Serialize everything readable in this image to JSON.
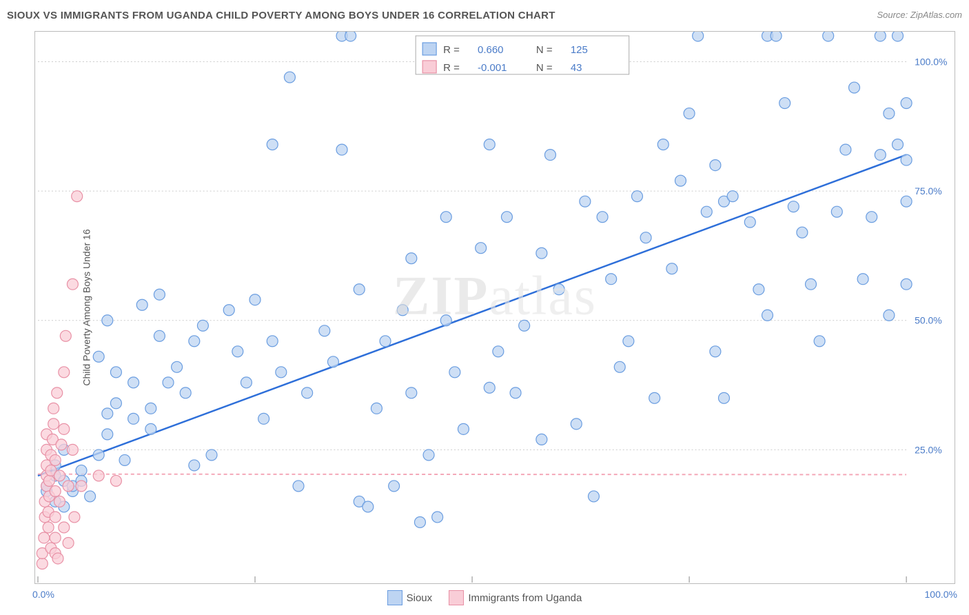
{
  "header": {
    "title": "SIOUX VS IMMIGRANTS FROM UGANDA CHILD POVERTY AMONG BOYS UNDER 16 CORRELATION CHART",
    "source": "Source: ZipAtlas.com"
  },
  "ylabel": "Child Poverty Among Boys Under 16",
  "watermark": {
    "bold": "ZIP",
    "light": "atlas"
  },
  "chart": {
    "type": "scatter",
    "xlim": [
      0,
      100
    ],
    "ylim": [
      0,
      105
    ],
    "x_tick_step": 25,
    "y_ticks": [
      0,
      25,
      50,
      75,
      100
    ],
    "x_tick_labels": [
      "0.0%",
      "",
      "",
      "",
      "100.0%"
    ],
    "y_tick_labels": [
      "",
      "25.0%",
      "50.0%",
      "75.0%",
      "100.0%"
    ],
    "background_color": "#ffffff",
    "grid_color": "#cccccc",
    "marker_radius": 8,
    "series": [
      {
        "name": "Sioux",
        "color_fill": "#bdd4f2",
        "color_stroke": "#6a9de0",
        "R": "0.660",
        "N": "125",
        "trend": {
          "x1": 0,
          "y1": 20,
          "x2": 100,
          "y2": 82,
          "stroke": "#2e6fd9",
          "dash": false
        },
        "points": [
          [
            1,
            17
          ],
          [
            1,
            18
          ],
          [
            2,
            15
          ],
          [
            2,
            20
          ],
          [
            2,
            22
          ],
          [
            3,
            14
          ],
          [
            3,
            19
          ],
          [
            3,
            25
          ],
          [
            4,
            17
          ],
          [
            4,
            18
          ],
          [
            5,
            21
          ],
          [
            5,
            19
          ],
          [
            6,
            16
          ],
          [
            7,
            24
          ],
          [
            7,
            43
          ],
          [
            8,
            28
          ],
          [
            8,
            32
          ],
          [
            8,
            50
          ],
          [
            9,
            34
          ],
          [
            9,
            40
          ],
          [
            10,
            23
          ],
          [
            11,
            31
          ],
          [
            11,
            38
          ],
          [
            12,
            53
          ],
          [
            13,
            29
          ],
          [
            13,
            33
          ],
          [
            14,
            47
          ],
          [
            14,
            55
          ],
          [
            15,
            38
          ],
          [
            16,
            41
          ],
          [
            17,
            36
          ],
          [
            18,
            46
          ],
          [
            18,
            22
          ],
          [
            19,
            49
          ],
          [
            20,
            24
          ],
          [
            22,
            52
          ],
          [
            23,
            44
          ],
          [
            24,
            38
          ],
          [
            25,
            54
          ],
          [
            26,
            31
          ],
          [
            27,
            46
          ],
          [
            27,
            84
          ],
          [
            28,
            40
          ],
          [
            29,
            97
          ],
          [
            30,
            18
          ],
          [
            31,
            36
          ],
          [
            33,
            48
          ],
          [
            34,
            42
          ],
          [
            35,
            105
          ],
          [
            35,
            83
          ],
          [
            36,
            105
          ],
          [
            37,
            56
          ],
          [
            37,
            15
          ],
          [
            38,
            14
          ],
          [
            39,
            33
          ],
          [
            40,
            46
          ],
          [
            41,
            18
          ],
          [
            42,
            52
          ],
          [
            43,
            36
          ],
          [
            44,
            11
          ],
          [
            45,
            24
          ],
          [
            46,
            12
          ],
          [
            47,
            50
          ],
          [
            48,
            40
          ],
          [
            49,
            29
          ],
          [
            51,
            64
          ],
          [
            52,
            84
          ],
          [
            53,
            44
          ],
          [
            54,
            70
          ],
          [
            55,
            36
          ],
          [
            56,
            49
          ],
          [
            58,
            63
          ],
          [
            59,
            82
          ],
          [
            60,
            56
          ],
          [
            62,
            30
          ],
          [
            63,
            73
          ],
          [
            64,
            16
          ],
          [
            65,
            70
          ],
          [
            66,
            58
          ],
          [
            67,
            41
          ],
          [
            68,
            46
          ],
          [
            69,
            74
          ],
          [
            70,
            66
          ],
          [
            71,
            35
          ],
          [
            72,
            84
          ],
          [
            73,
            60
          ],
          [
            74,
            77
          ],
          [
            75,
            90
          ],
          [
            76,
            105
          ],
          [
            77,
            71
          ],
          [
            78,
            80
          ],
          [
            79,
            35
          ],
          [
            79,
            73
          ],
          [
            80,
            74
          ],
          [
            82,
            69
          ],
          [
            83,
            56
          ],
          [
            84,
            51
          ],
          [
            84,
            105
          ],
          [
            85,
            105
          ],
          [
            86,
            92
          ],
          [
            87,
            72
          ],
          [
            88,
            67
          ],
          [
            89,
            57
          ],
          [
            90,
            46
          ],
          [
            91,
            105
          ],
          [
            92,
            71
          ],
          [
            93,
            83
          ],
          [
            94,
            95
          ],
          [
            95,
            58
          ],
          [
            96,
            70
          ],
          [
            97,
            105
          ],
          [
            97,
            82
          ],
          [
            98,
            51
          ],
          [
            98,
            90
          ],
          [
            99,
            105
          ],
          [
            99,
            84
          ],
          [
            100,
            57
          ],
          [
            100,
            92
          ],
          [
            100,
            73
          ],
          [
            100,
            81
          ],
          [
            43,
            62
          ],
          [
            47,
            70
          ],
          [
            52,
            37
          ],
          [
            58,
            27
          ],
          [
            78,
            44
          ]
        ]
      },
      {
        "name": "Immigrants from Uganda",
        "color_fill": "#f9cdd7",
        "color_stroke": "#e890a5",
        "R": "-0.001",
        "N": "43",
        "trend": {
          "x1": 0,
          "y1": 20.3,
          "x2": 100,
          "y2": 20.2,
          "stroke": "#f4a8b8",
          "dash": true
        },
        "points": [
          [
            0.5,
            3
          ],
          [
            0.5,
            5
          ],
          [
            0.7,
            8
          ],
          [
            0.8,
            12
          ],
          [
            0.8,
            15
          ],
          [
            1,
            18
          ],
          [
            1,
            20
          ],
          [
            1,
            22
          ],
          [
            1,
            25
          ],
          [
            1,
            28
          ],
          [
            1.2,
            10
          ],
          [
            1.2,
            13
          ],
          [
            1.3,
            16
          ],
          [
            1.3,
            19
          ],
          [
            1.5,
            6
          ],
          [
            1.5,
            21
          ],
          [
            1.5,
            24
          ],
          [
            1.7,
            27
          ],
          [
            1.8,
            30
          ],
          [
            1.8,
            33
          ],
          [
            2,
            5
          ],
          [
            2,
            8
          ],
          [
            2,
            12
          ],
          [
            2,
            17
          ],
          [
            2,
            23
          ],
          [
            2.2,
            36
          ],
          [
            2.3,
            4
          ],
          [
            2.5,
            15
          ],
          [
            2.5,
            20
          ],
          [
            2.7,
            26
          ],
          [
            3,
            10
          ],
          [
            3,
            29
          ],
          [
            3,
            40
          ],
          [
            3.2,
            47
          ],
          [
            3.5,
            18
          ],
          [
            3.5,
            7
          ],
          [
            4,
            25
          ],
          [
            4,
            57
          ],
          [
            4.2,
            12
          ],
          [
            4.5,
            74
          ],
          [
            5,
            18
          ],
          [
            7,
            20
          ],
          [
            9,
            19
          ]
        ]
      }
    ]
  },
  "stats_box": {
    "rows": [
      {
        "swatch": "blue",
        "R_label": "R =",
        "R_val": "0.660",
        "N_label": "N =",
        "N_val": "125"
      },
      {
        "swatch": "pink",
        "R_label": "R =",
        "R_val": "-0.001",
        "N_label": "N =",
        "N_val": "43"
      }
    ]
  },
  "legend": {
    "items": [
      {
        "swatch": "blue",
        "label": "Sioux"
      },
      {
        "swatch": "pink",
        "label": "Immigrants from Uganda"
      }
    ]
  }
}
